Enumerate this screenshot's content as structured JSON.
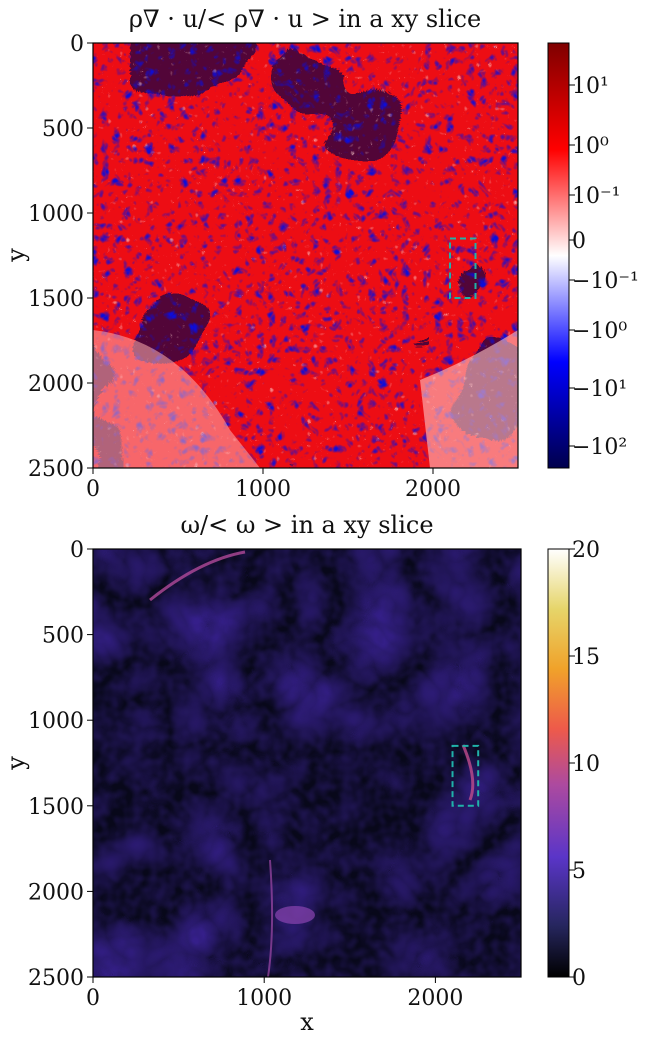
{
  "chart_data": [
    {
      "type": "heatmap",
      "title": "ρ∇ · u/< ρ∇ · u > in a xy slice",
      "xlabel": "",
      "ylabel": "y",
      "xlim": [
        0,
        2500
      ],
      "ylim": [
        2500,
        0
      ],
      "xticks": [
        "0",
        "1000",
        "2000"
      ],
      "xtick_values": [
        0,
        1000,
        2000
      ],
      "yticks": [
        "0",
        "500",
        "1000",
        "1500",
        "2000",
        "2500"
      ],
      "ytick_values": [
        0,
        500,
        1000,
        1500,
        2000,
        2500
      ],
      "colormap": "seismic",
      "colorscale": "symlog",
      "colorbar": {
        "range": [
          -300,
          60
        ],
        "ticks": [
          "10¹",
          "10⁰",
          "10⁻¹",
          "0",
          "−10⁻¹",
          "−10⁰",
          "−10¹",
          "−10²"
        ],
        "tick_values": [
          10,
          1,
          0.1,
          0,
          -0.1,
          -1,
          -10,
          -100
        ]
      },
      "colors": {
        "low": "#00004c",
        "mid": "#ffffff",
        "high": "#7f0000"
      },
      "highlight_box": {
        "x": [
          2100,
          2250
        ],
        "y": [
          1150,
          1500
        ],
        "color": "#20b2aa",
        "style": "dashed"
      }
    },
    {
      "type": "heatmap",
      "title": "ω/< ω > in a xy slice",
      "xlabel": "x",
      "ylabel": "y",
      "xlim": [
        0,
        2500
      ],
      "ylim": [
        2500,
        0
      ],
      "xticks": [
        "0",
        "1000",
        "2000"
      ],
      "xtick_values": [
        0,
        1000,
        2000
      ],
      "yticks": [
        "0",
        "500",
        "1000",
        "1500",
        "2000",
        "2500"
      ],
      "ytick_values": [
        0,
        500,
        1000,
        1500,
        2000,
        2500
      ],
      "colormap": "CMRmap",
      "colorbar": {
        "range": [
          0,
          20
        ],
        "ticks": [
          "20",
          "15",
          "10",
          "5",
          "0"
        ],
        "tick_values": [
          20,
          15,
          10,
          5,
          0
        ]
      },
      "colors": {
        "low": "#000000",
        "mid": "#b04fa0",
        "high": "#ffffff"
      },
      "highlight_box": {
        "x": [
          2100,
          2250
        ],
        "y": [
          1150,
          1500
        ],
        "color": "#20b2aa",
        "style": "dashed"
      }
    }
  ]
}
